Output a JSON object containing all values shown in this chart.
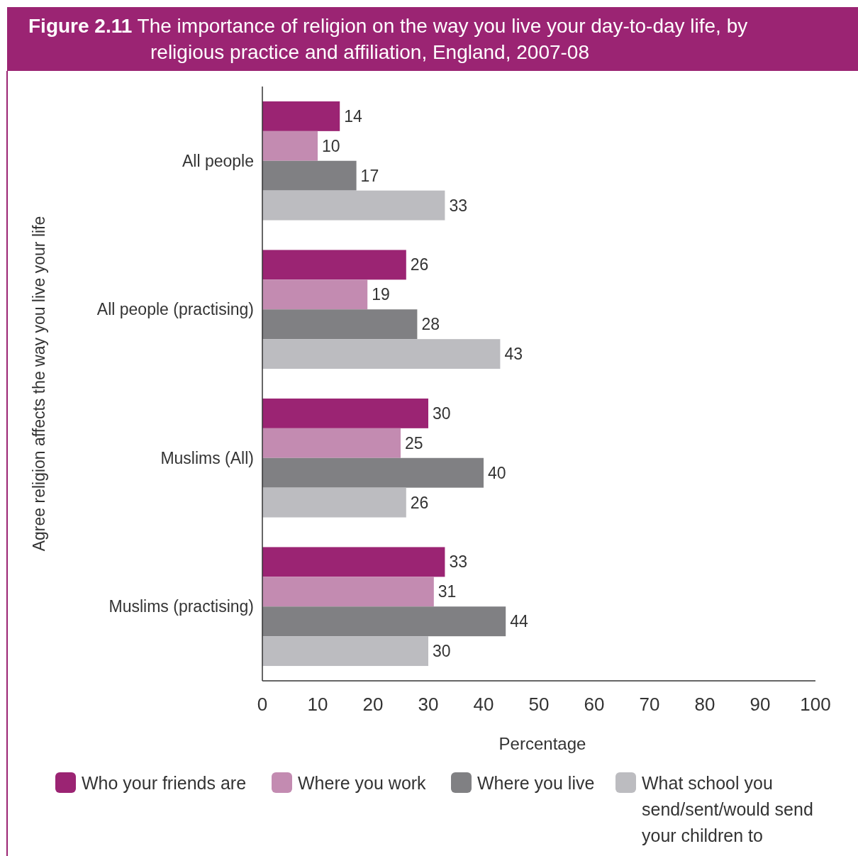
{
  "chart_data": {
    "type": "bar",
    "orientation": "horizontal",
    "title": "Figure 2.11 The importance of religion on the way you live your day-to-day life, by religious practice and affiliation, England, 2007-08",
    "xlabel": "Percentage",
    "ylabel": "Agree religion affects the way you live your life",
    "categories": [
      "All people",
      "All people (practising)",
      "Muslims (All)",
      "Muslims (practising)"
    ],
    "series": [
      {
        "name": "Who your friends are",
        "color": "#9b2473",
        "values": [
          14,
          26,
          30,
          33
        ]
      },
      {
        "name": "Where you work",
        "color": "#c38bb1",
        "values": [
          10,
          19,
          25,
          31
        ]
      },
      {
        "name": "Where you live",
        "color": "#808083",
        "values": [
          17,
          28,
          40,
          44
        ]
      },
      {
        "name": "What school you send/sent/would send your children to",
        "color": "#bcbcc0",
        "values": [
          33,
          43,
          26,
          30
        ]
      }
    ],
    "xlim": [
      0,
      100
    ],
    "xticks": [
      0,
      10,
      20,
      30,
      40,
      50,
      60,
      70,
      80,
      90,
      100
    ],
    "data_labels": true,
    "legend": "bottom",
    "grid": false
  }
}
